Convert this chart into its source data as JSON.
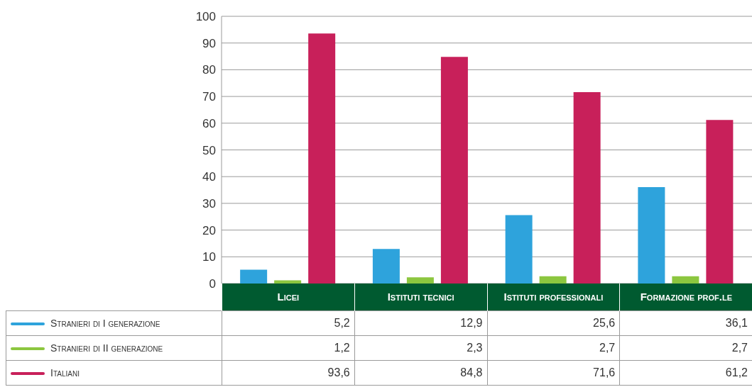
{
  "chart_data": {
    "type": "bar",
    "categories": [
      "Licei",
      "Istituti tecnici",
      "Istituti professionali",
      "Formazione prof.le"
    ],
    "series": [
      {
        "name": "Stranieri di I generazione",
        "color": "#2ea3dc",
        "values": [
          5.2,
          12.9,
          25.6,
          36.1
        ],
        "value_labels": [
          "5,2",
          "12,9",
          "25,6",
          "36,1"
        ]
      },
      {
        "name": "Stranieri di II generazione",
        "color": "#8cc63f",
        "values": [
          1.2,
          2.3,
          2.7,
          2.7
        ],
        "value_labels": [
          "1,2",
          "2,3",
          "2,7",
          "2,7"
        ]
      },
      {
        "name": "Italiani",
        "color": "#c8205a",
        "values": [
          93.6,
          84.8,
          71.6,
          61.2
        ],
        "value_labels": [
          "93,6",
          "84,8",
          "71,6",
          "61,2"
        ]
      }
    ],
    "ylim": [
      0,
      100
    ],
    "yticks": [
      0,
      10,
      20,
      30,
      40,
      50,
      60,
      70,
      80,
      90,
      100
    ],
    "grid": "y",
    "legend": "bottom"
  }
}
